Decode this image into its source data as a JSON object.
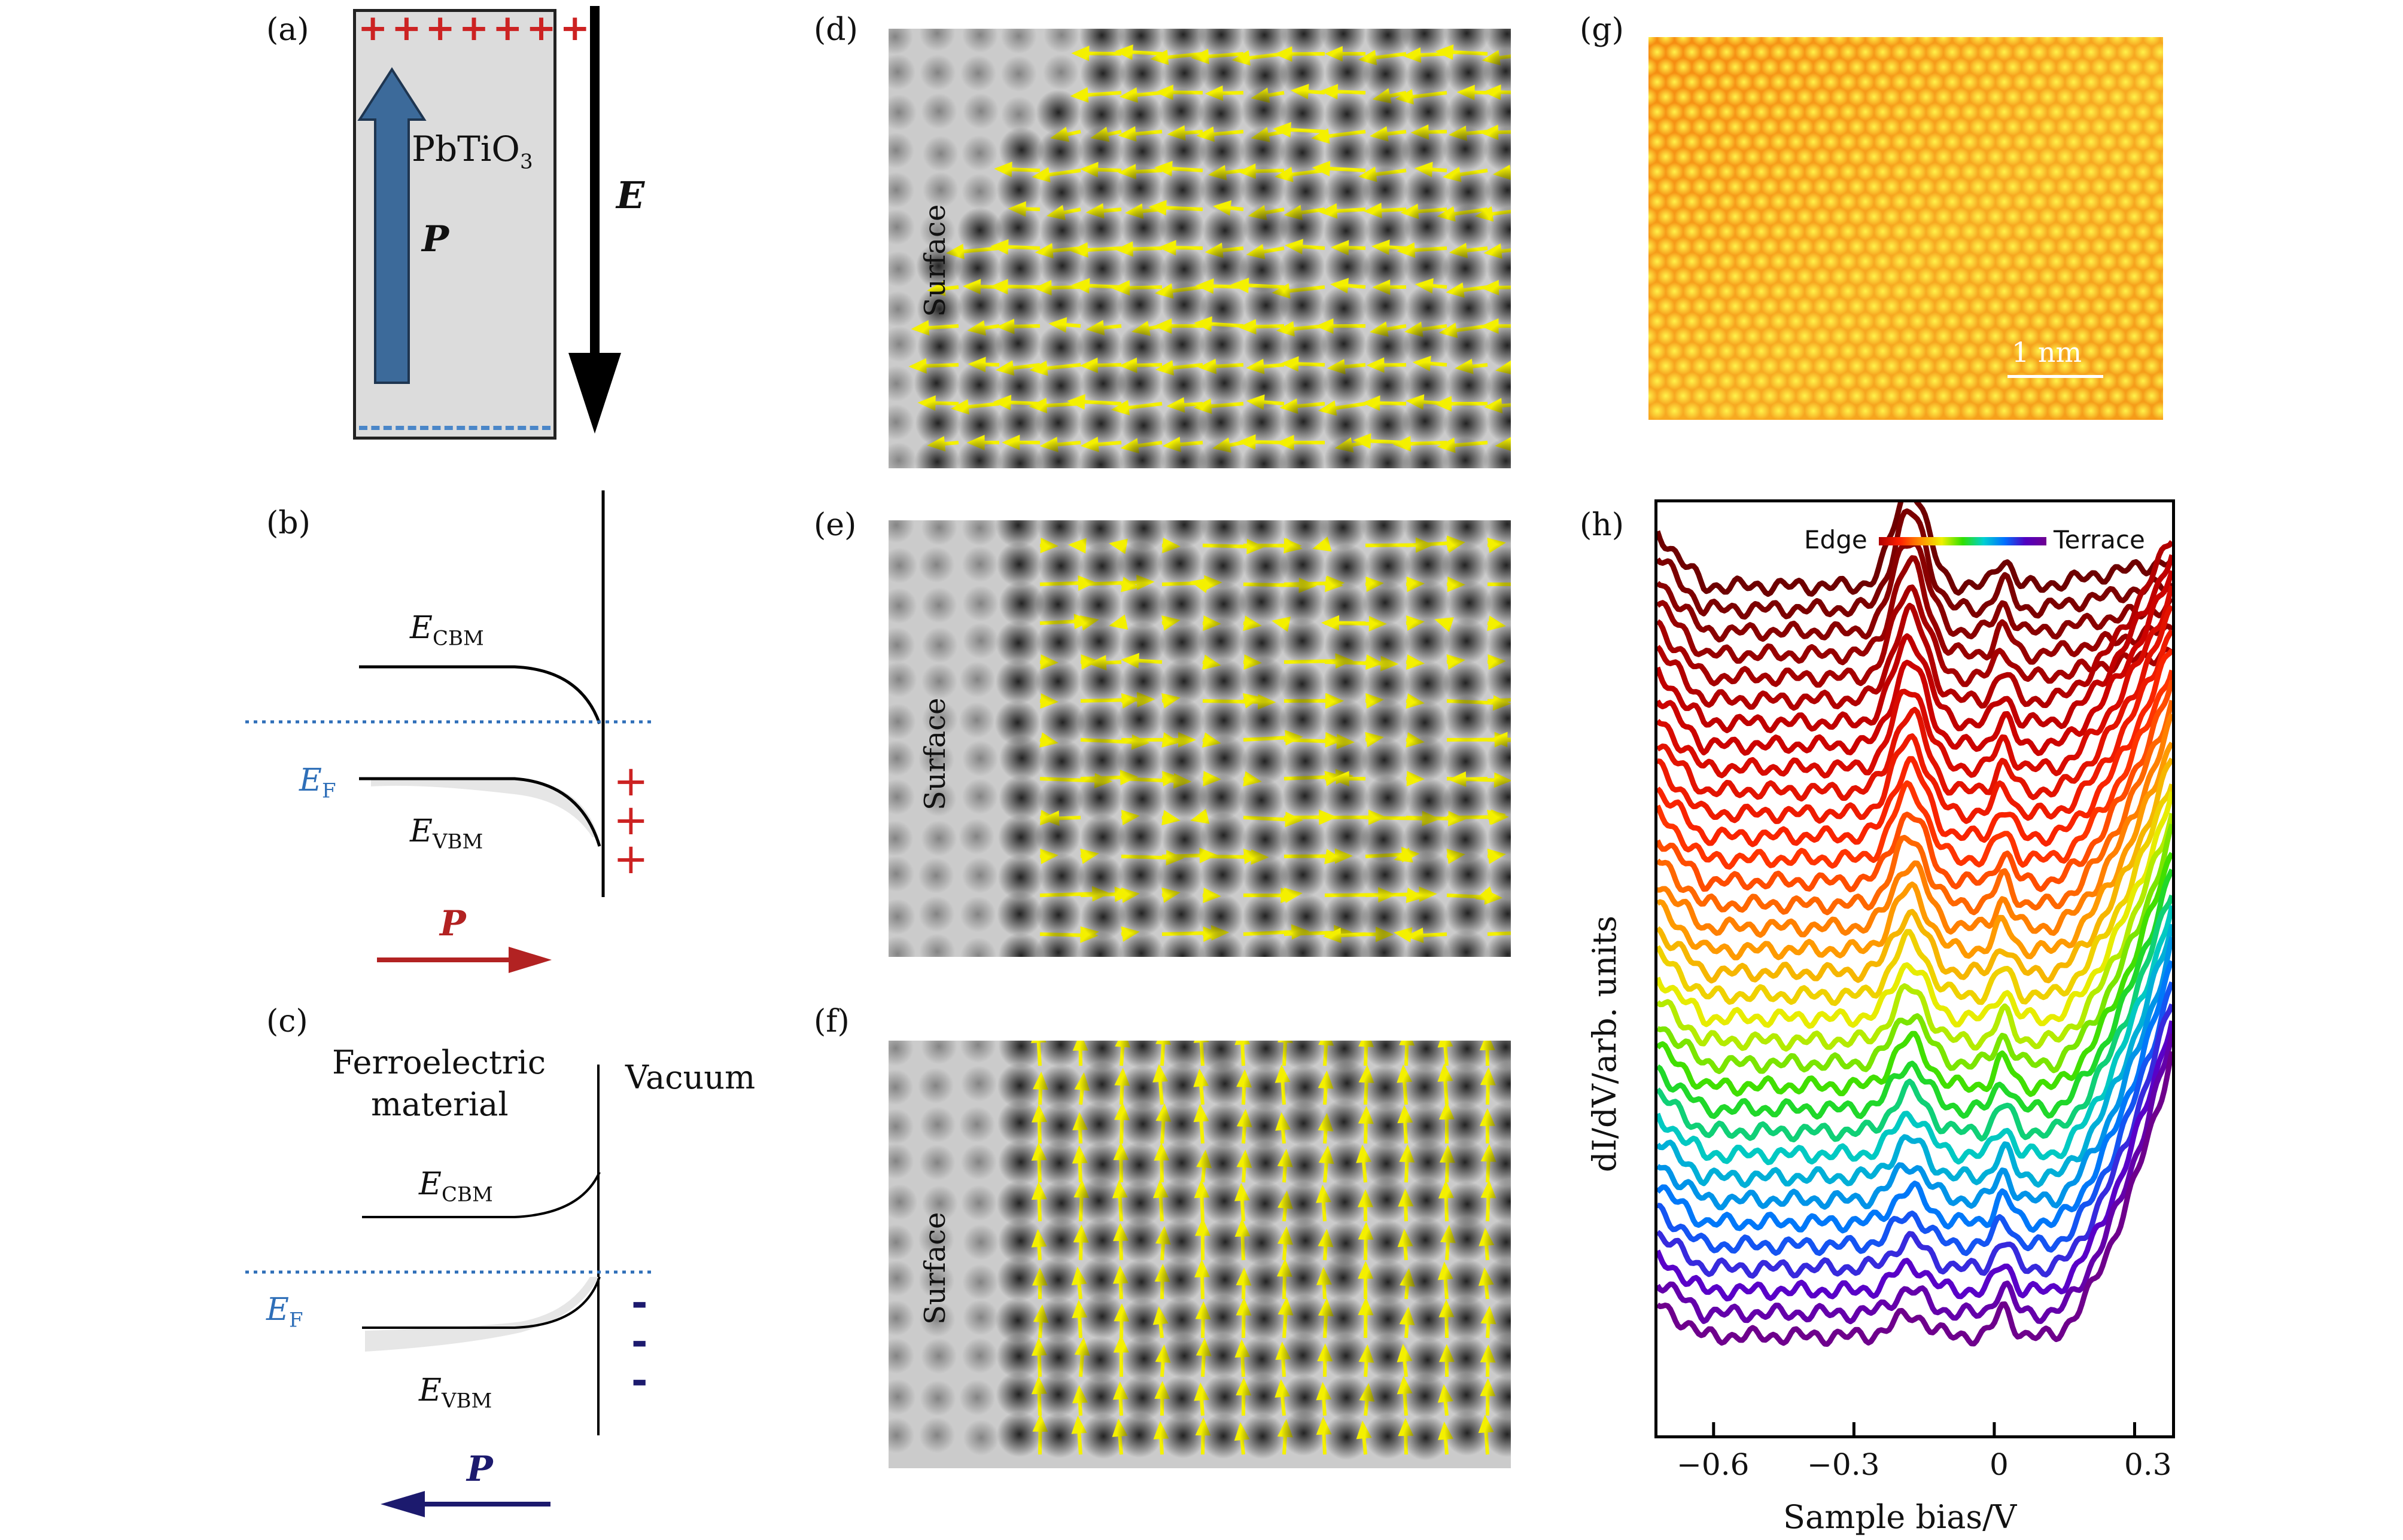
{
  "labels": {
    "a": "(a)",
    "b": "(b)",
    "c": "(c)",
    "d": "(d)",
    "e": "(e)",
    "f": "(f)",
    "g": "(g)",
    "h": "(h)"
  },
  "panel_a": {
    "material_main": "PbTiO",
    "material_sub": "3",
    "polarization": "P",
    "field": "E",
    "top_charges": "+++++++",
    "bottom_charges": "- - - - - - - - -"
  },
  "panel_b": {
    "cbm_main": "E",
    "cbm_sub": "CBM",
    "vbm_main": "E",
    "vbm_sub": "VBM",
    "fermi_main": "E",
    "fermi_sub": "F",
    "charges": [
      "+",
      "+",
      "+"
    ],
    "polarization": "P"
  },
  "panel_c": {
    "left_region": "Ferroelectric",
    "left_region2": "material",
    "right_region": "Vacuum",
    "cbm_main": "E",
    "cbm_sub": "CBM",
    "vbm_main": "E",
    "vbm_sub": "VBM",
    "fermi_main": "E",
    "fermi_sub": "F",
    "charges": [
      "-",
      "-",
      "-"
    ],
    "polarization": "P"
  },
  "panel_d": {
    "surface": "Surface"
  },
  "panel_e": {
    "surface": "Surface"
  },
  "panel_f": {
    "surface": "Surface"
  },
  "panel_g": {
    "scalebar": "1 nm"
  },
  "colors": {
    "arrow_blue": "#3c6a9a",
    "red_charge": "#cc2222",
    "fermi_blue": "#2f6fb8",
    "pol_red": "#b22222",
    "pol_navy": "#1c1a6e",
    "vector_yellow": "#f4f000"
  },
  "chart_data": {
    "type": "line",
    "title": "",
    "xlabel": "Sample bias/V",
    "ylabel": "dI/dV/arb. units",
    "xticks": [
      "−0.6",
      "−0.3",
      "0",
      "0.3"
    ],
    "xtick_values": [
      -0.6,
      -0.3,
      0,
      0.3
    ],
    "xlim": [
      -0.72,
      0.38
    ],
    "legend": {
      "left": "Edge",
      "right": "Terrace",
      "position": "top-right"
    },
    "series_count": 34,
    "feature_peaks_V": [
      -0.18,
      0.02
    ]
  }
}
